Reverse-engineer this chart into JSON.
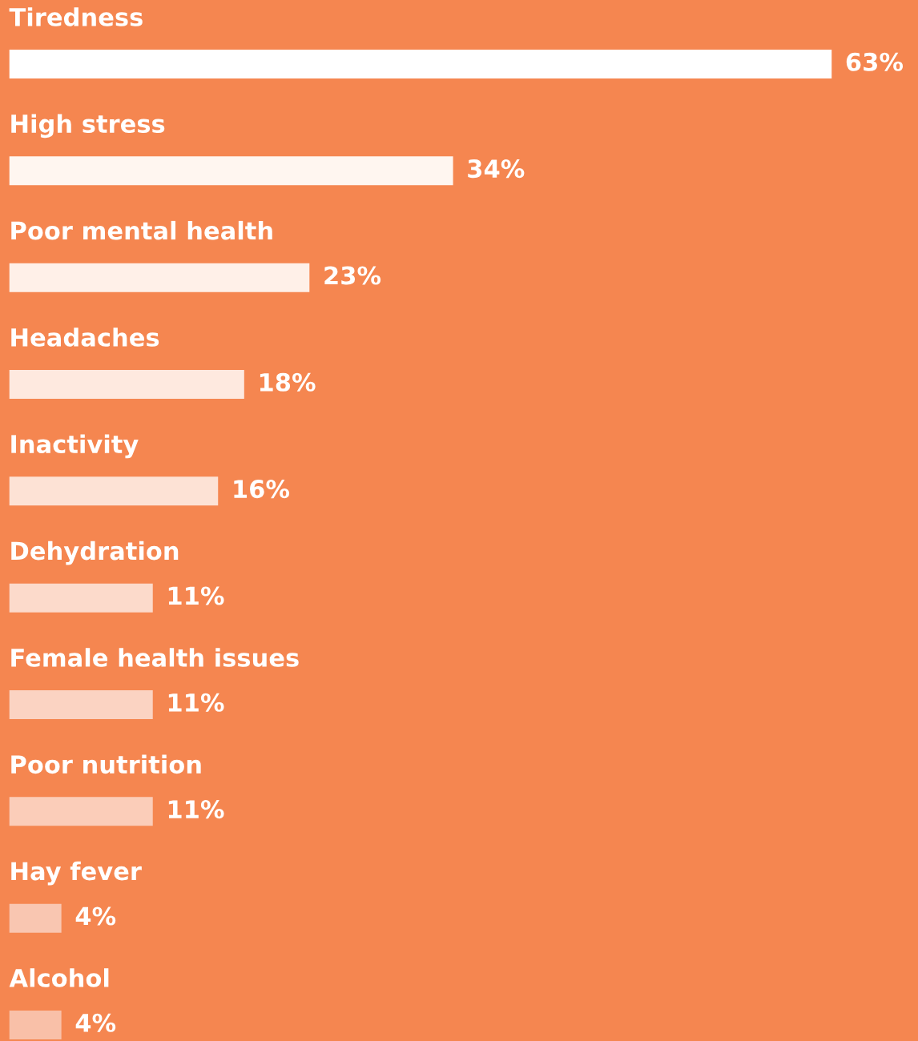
{
  "chart_data": {
    "type": "bar",
    "orientation": "horizontal",
    "categories": [
      "Tiredness",
      "High stress",
      "Poor mental health",
      "Headaches",
      "Inactivity",
      "Dehydration",
      "Female health issues",
      "Poor nutrition",
      "Hay fever",
      "Alcohol"
    ],
    "values": [
      63,
      34,
      23,
      18,
      16,
      11,
      11,
      11,
      4,
      4
    ],
    "value_labels": [
      "63%",
      "34%",
      "23%",
      "18%",
      "16%",
      "11%",
      "11%",
      "11%",
      "4%",
      "4%"
    ],
    "colors": [
      "#ffffff",
      "#fff6f0",
      "#fff0e8",
      "#fee9df",
      "#fde2d5",
      "#fcdacb",
      "#fbd3c2",
      "#fbcdb9",
      "#f9c6b1",
      "#f9c0a8"
    ]
  }
}
